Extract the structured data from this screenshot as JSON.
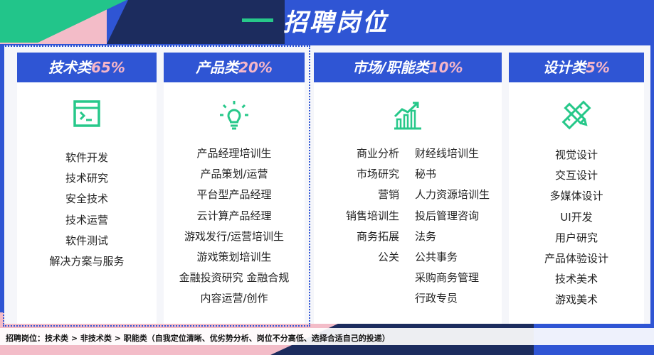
{
  "title": "招聘岗位",
  "colors": {
    "accent_blue": "#2f55d4",
    "accent_green": "#27c88a",
    "accent_pink": "#f5b6c8",
    "navy": "#1c2c5e"
  },
  "cards": [
    {
      "name": "技术类",
      "percent": "65%",
      "icon": "terminal-window-icon",
      "items": [
        "软件开发",
        "技术研究",
        "安全技术",
        "技术运营",
        "软件测试",
        "解决方案与服务"
      ]
    },
    {
      "name": "产品类",
      "percent": "20%",
      "icon": "lightbulb-icon",
      "items": [
        "产品经理培训生",
        "产品策划/运营",
        "平台型产品经理",
        "云计算产品经理",
        "游戏发行/运营培训生",
        "游戏策划培训生",
        "金融投资研究  金融合规",
        "内容运营/创作"
      ]
    },
    {
      "name": "市场/职能类",
      "percent": "10%",
      "icon": "growth-chart-icon",
      "items_left": [
        "商业分析",
        "市场研究",
        "营销",
        "销售培训生",
        "商务拓展",
        "公关"
      ],
      "items_right": [
        "财经线培训生",
        "秘书",
        "人力资源培训生",
        "投后管理咨询",
        "法务",
        "公共事务",
        "采购商务管理",
        "行政专员"
      ]
    },
    {
      "name": "设计类",
      "percent": "5%",
      "icon": "pencil-ruler-icon",
      "items": [
        "视觉设计",
        "交互设计",
        "多媒体设计",
        "UI开发",
        "用户研究",
        "产品体验设计",
        "技术美术",
        "游戏美术"
      ]
    }
  ],
  "footer": "招聘岗位：技术类 > 非技术类 > 职能类（自我定位清晰、优劣势分析、岗位不分高低、选择合适自己的投递）"
}
